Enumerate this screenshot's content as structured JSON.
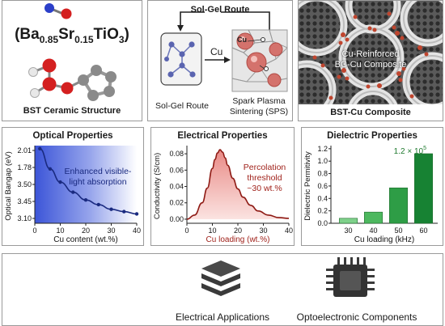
{
  "top": {
    "left": {
      "formula_main": "(Ba",
      "formula_sub1": "0.85",
      "formula_mid": "Sr",
      "formula_sub2": "0.15",
      "formula_end": "TiO",
      "formula_sub3": "3",
      "formula_close": ")",
      "caption": "BST Ceramic Structure"
    },
    "middle": {
      "title": "Sol-Gel Route",
      "arrow_label": "Cu",
      "particle_label": "Cu",
      "left_caption": "Sol-Gel Route",
      "right_caption_line1": "Spark Plasma",
      "right_caption_line2": "Sintering (SPS)"
    },
    "right": {
      "overlay_line1": "Cu-Reinforced",
      "overlay_line2": "BC-Cu Composite",
      "caption": "BST-Cu Composite"
    }
  },
  "charts": {
    "optical": {
      "title": "Optical Properties",
      "ylabel": "Optical Bangap (eV)",
      "xlabel": "Cu content (wt.%)",
      "annotation_line1": "Enhanced visible-",
      "annotation_line2": "light absorption"
    },
    "electrical": {
      "title": "Electrical Properties",
      "ylabel": "Conductivity (S/cm)",
      "xlabel": "Cu loading (wt.%)",
      "annotation_line1": "Percolation",
      "annotation_line2": "threshold",
      "annotation_line3": "~30 wt.%"
    },
    "dielectric": {
      "title": "Dielectric Properties",
      "ylabel": "Dielectric Permitivity",
      "xlabel": "Cu loading (kHz)",
      "top_label_base": "1.2 × 10",
      "top_label_exp": "5"
    }
  },
  "chart_data": [
    {
      "type": "line",
      "title": "Optical Properties",
      "xlabel": "Cu content (wt.%)",
      "ylabel": "Optical Bangap (eV)",
      "x": [
        2,
        6,
        10,
        15,
        20,
        25,
        30,
        35,
        40
      ],
      "y_position_fraction": [
        0.96,
        0.7,
        0.53,
        0.4,
        0.3,
        0.24,
        0.18,
        0.15,
        0.12
      ],
      "xlim": [
        0,
        40
      ],
      "xticks": [
        "0",
        "10",
        "20",
        "30",
        "40"
      ],
      "yticks": [
        "2.01",
        "1.78",
        "3.50",
        "3.45",
        "3.10"
      ],
      "grid": false
    },
    {
      "type": "area",
      "title": "Electrical Properties",
      "xlabel": "Cu loading (wt.%)",
      "ylabel": "Conductivity (S/cm)",
      "x": [
        0,
        3,
        6,
        8,
        10,
        11,
        12,
        13,
        14,
        15,
        16,
        18,
        20,
        22,
        25,
        28,
        32,
        36,
        40
      ],
      "y": [
        0.0,
        0.005,
        0.02,
        0.038,
        0.062,
        0.073,
        0.081,
        0.085,
        0.082,
        0.075,
        0.066,
        0.05,
        0.037,
        0.027,
        0.017,
        0.01,
        0.005,
        0.002,
        0.001
      ],
      "xlim": [
        0,
        40
      ],
      "ylim": [
        -0.005,
        0.09
      ],
      "xticks": [
        "0",
        "10",
        "20",
        "30",
        "40"
      ],
      "yticks": [
        "0.00",
        "0.02",
        "0.04",
        "0.06",
        "0.08"
      ],
      "grid": false
    },
    {
      "type": "bar",
      "title": "Dielectric Properties",
      "xlabel": "Cu loading (kHz)",
      "ylabel": "Dielectric Permitivity",
      "categories": [
        "30",
        "40",
        "50",
        "60"
      ],
      "values": [
        0.08,
        0.18,
        0.57,
        1.12
      ],
      "ylim": [
        0,
        1.25
      ],
      "yticks": [
        "0.0",
        "0.2",
        "0.4",
        "0.6",
        "0.8",
        "1.0",
        "1.2"
      ],
      "colors": [
        "#7fd18b",
        "#4db85f",
        "#2e9d46",
        "#178233"
      ],
      "grid": false
    }
  ],
  "bottom": {
    "left_label": "Electrical Applications",
    "right_label": "Optoelectronic Components",
    "left_icon": "layers-stack-icon",
    "right_icon": "microchip-icon"
  }
}
